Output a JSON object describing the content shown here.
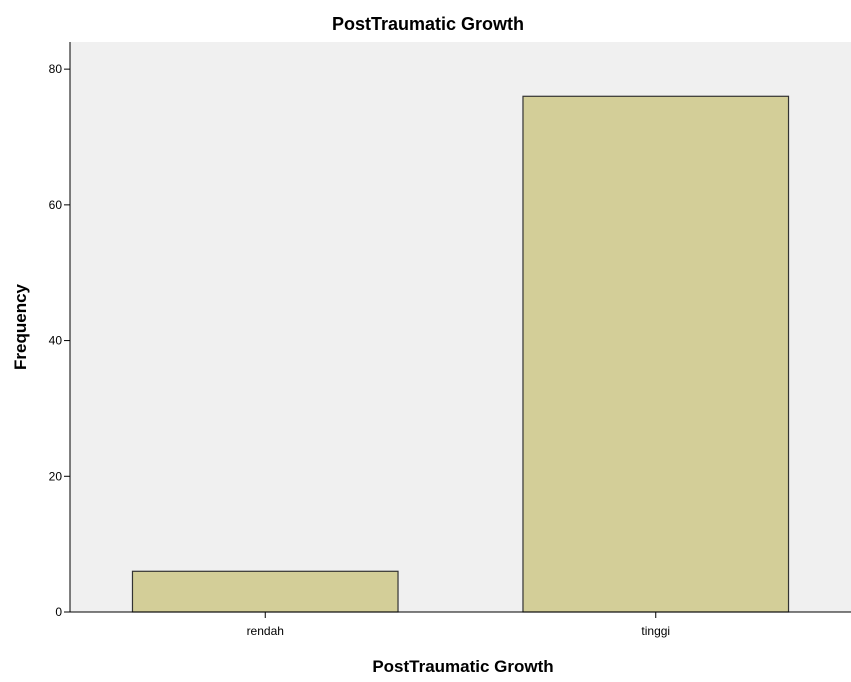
{
  "chart_data": {
    "type": "bar",
    "title": "PostTraumatic Growth",
    "xlabel": "PostTraumatic Growth",
    "ylabel": "Frequency",
    "categories": [
      "rendah",
      "tinggi"
    ],
    "values": [
      6,
      76
    ],
    "ylim": [
      0,
      84
    ],
    "yticks": [
      0,
      20,
      40,
      60,
      80
    ],
    "grid": false,
    "colors": {
      "plot_background": "#f0f0f0",
      "bar_fill": "#d3ce98",
      "bar_stroke": "#333333",
      "axis": "#000000"
    }
  }
}
